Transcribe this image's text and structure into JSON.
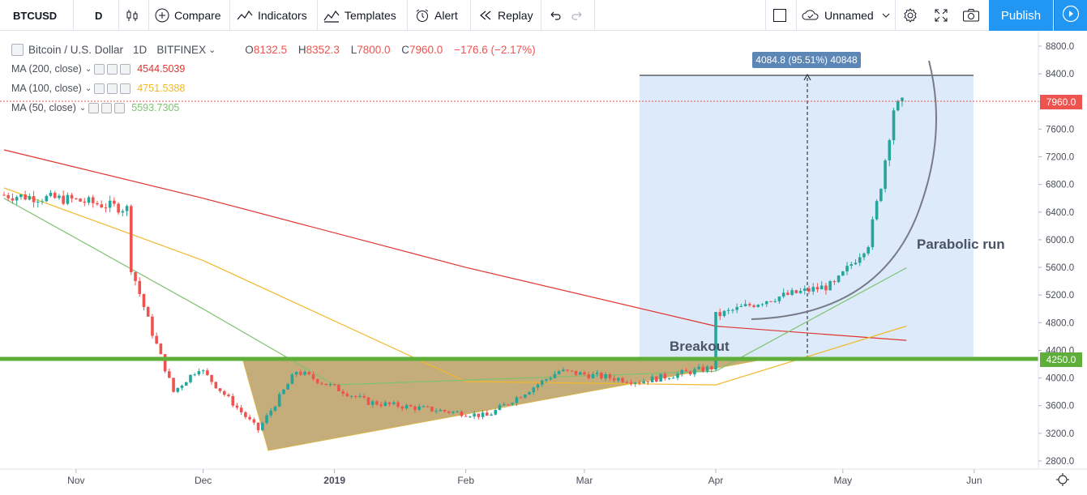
{
  "toolbar": {
    "symbol": "BTCUSD",
    "interval": "D",
    "compare": "Compare",
    "indicators": "Indicators",
    "templates": "Templates",
    "alert": "Alert",
    "replay": "Replay",
    "layout_name": "Unnamed",
    "publish": "Publish"
  },
  "legend": {
    "title": "Bitcoin / U.S. Dollar",
    "interval": "1D",
    "exchange": "BITFINEX",
    "open_k": "O",
    "open": "8132.5",
    "high_k": "H",
    "high": "8352.3",
    "low_k": "L",
    "low": "7800.0",
    "close_k": "C",
    "close": "7960.0",
    "change": "−176.6 (−2.17%)",
    "indicators": [
      {
        "label": "MA (200, close)",
        "value": "4544.5039",
        "color": "#e0342f"
      },
      {
        "label": "MA (100, close)",
        "value": "4751.5388",
        "color": "#f0b82a"
      },
      {
        "label": "MA (50, close)",
        "value": "5593.7305",
        "color": "#7ec26f"
      }
    ]
  },
  "price_axis": {
    "ticks": [
      "8800.0",
      "8400.0",
      "8000.0",
      "7600.0",
      "7200.0",
      "6800.0",
      "6400.0",
      "6000.0",
      "5600.0",
      "5200.0",
      "4800.0",
      "4400.0",
      "4000.0",
      "3600.0",
      "3200.0",
      "2800.0"
    ],
    "last_price_label": "7960.0",
    "level_label": "4250.0"
  },
  "time_axis": {
    "labels": [
      "Nov",
      "Dec",
      "2019",
      "Feb",
      "Mar",
      "Apr",
      "May",
      "Jun"
    ]
  },
  "annotations": {
    "measure_label": "4084.8 (95.51%) 40848",
    "breakout": "Breakout",
    "parabolic": "Parabolic run"
  },
  "colors": {
    "bull": "#26a69a",
    "bear": "#ef5350",
    "ma200": "#e0342f",
    "ma100": "#f0b82a",
    "ma50": "#7ec26f",
    "support": "#5fae3a",
    "measure_fill": "#ddeaf9",
    "triangle_fill": "#b5975a",
    "accent": "#2196f3"
  },
  "chart_data": {
    "type": "candlestick",
    "symbol": "BTCUSD",
    "interval": "1D",
    "y_axis_range": [
      2800,
      8800
    ],
    "support_level": 4250.0,
    "last_close": 7960.0,
    "x_start": "2018-10-15",
    "x_end": "2019-06-15",
    "ohlc_approx_closes": [
      {
        "date": "2018-10-15",
        "close": 6650
      },
      {
        "date": "2018-11-01",
        "close": 6580
      },
      {
        "date": "2018-11-14",
        "close": 6450
      },
      {
        "date": "2018-11-15",
        "close": 5600
      },
      {
        "date": "2018-11-20",
        "close": 4650
      },
      {
        "date": "2018-11-25",
        "close": 3800
      },
      {
        "date": "2018-12-01",
        "close": 4150
      },
      {
        "date": "2018-12-15",
        "close": 3250
      },
      {
        "date": "2018-12-24",
        "close": 4100
      },
      {
        "date": "2019-01-10",
        "close": 3650
      },
      {
        "date": "2019-02-07",
        "close": 3450
      },
      {
        "date": "2019-02-24",
        "close": 4100
      },
      {
        "date": "2019-03-15",
        "close": 3950
      },
      {
        "date": "2019-04-01",
        "close": 4150
      },
      {
        "date": "2019-04-02",
        "close": 4900
      },
      {
        "date": "2019-04-15",
        "close": 5150
      },
      {
        "date": "2019-04-30",
        "close": 5350
      },
      {
        "date": "2019-05-08",
        "close": 5950
      },
      {
        "date": "2019-05-11",
        "close": 6800
      },
      {
        "date": "2019-05-14",
        "close": 7900
      },
      {
        "date": "2019-05-16",
        "close": 7960
      }
    ],
    "ma200": [
      {
        "date": "2018-10-15",
        "value": 7300
      },
      {
        "date": "2018-12-01",
        "value": 6600
      },
      {
        "date": "2019-02-01",
        "value": 5600
      },
      {
        "date": "2019-04-01",
        "value": 4750
      },
      {
        "date": "2019-05-16",
        "value": 4544.5
      }
    ],
    "ma100": [
      {
        "date": "2018-10-15",
        "value": 6750
      },
      {
        "date": "2018-12-01",
        "value": 5700
      },
      {
        "date": "2019-02-01",
        "value": 3950
      },
      {
        "date": "2019-04-01",
        "value": 3900
      },
      {
        "date": "2019-05-16",
        "value": 4751.5
      }
    ],
    "ma50": [
      {
        "date": "2018-10-15",
        "value": 6600
      },
      {
        "date": "2018-12-01",
        "value": 5000
      },
      {
        "date": "2019-01-01",
        "value": 3900
      },
      {
        "date": "2019-04-01",
        "value": 4100
      },
      {
        "date": "2019-05-16",
        "value": 5593.7
      }
    ]
  }
}
